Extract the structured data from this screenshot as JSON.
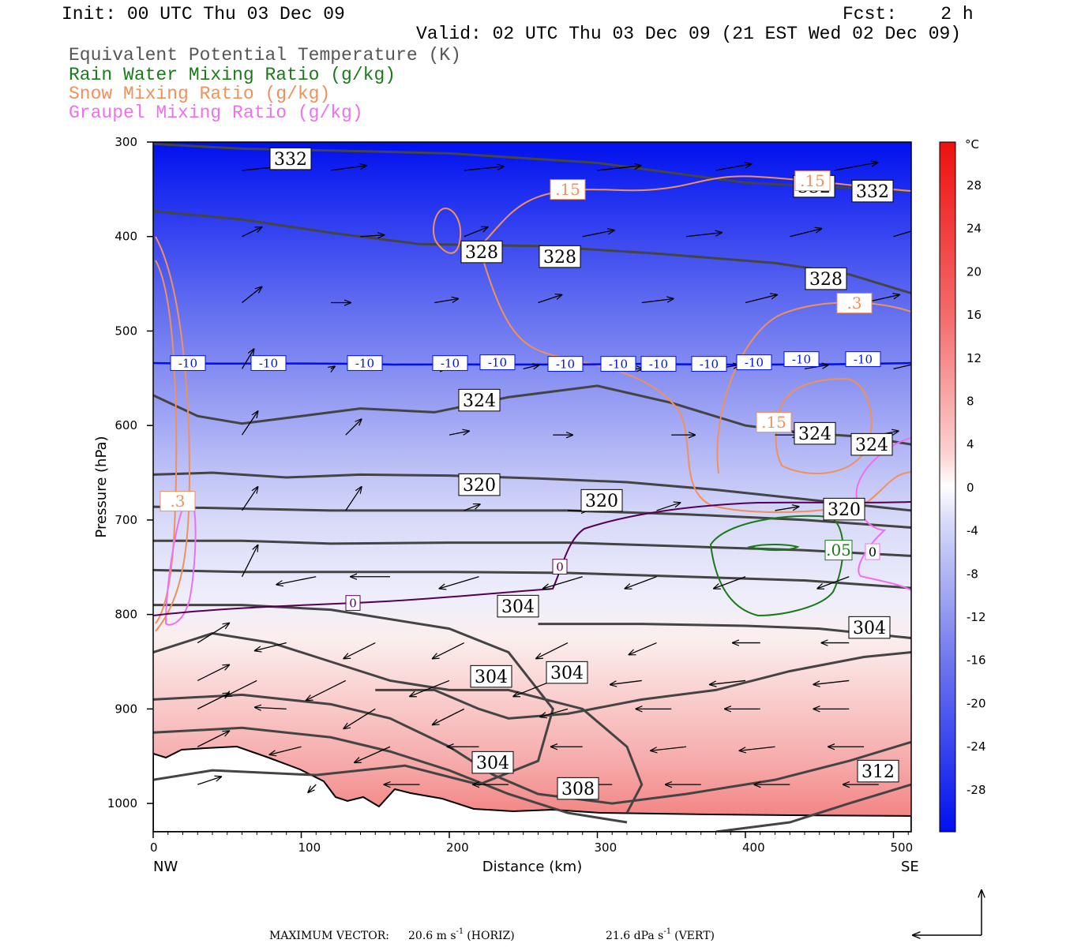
{
  "header": {
    "init": "Init: 00 UTC Thu 03 Dec 09",
    "fcst": "Fcst:    2 h",
    "valid": "Valid: 02 UTC Thu 03 Dec 09 (21 EST Wed 02 Dec 09)",
    "legend": [
      {
        "text": "Equivalent Potential Temperature (K)",
        "color": "#555555"
      },
      {
        "text": "Rain Water Mixing Ratio (g/kg)",
        "color": "#1a7a1a"
      },
      {
        "text": "Snow Mixing Ratio (g/kg)",
        "color": "#f0905a"
      },
      {
        "text": "Graupel Mixing Ratio (g/kg)",
        "color": "#ee70ee"
      }
    ]
  },
  "chart_data": {
    "type": "heatmap",
    "xlabel": "Distance (km)",
    "ylabel": "Pressure (hPa)",
    "xlim": [
      0,
      512
    ],
    "ylim": [
      1030,
      300
    ],
    "x_ticks": [
      "0",
      "100",
      "200",
      "300",
      "400",
      "500"
    ],
    "y_ticks": [
      "300",
      "400",
      "500",
      "600",
      "700",
      "800",
      "900",
      "1000"
    ],
    "x_end_labels": {
      "left": "NW",
      "right": "SE"
    },
    "colorbar": {
      "unit": "°C",
      "ticks": [
        "28",
        "24",
        "20",
        "16",
        "12",
        "8",
        "4",
        "0",
        "-4",
        "-8",
        "-12",
        "-16",
        "-20",
        "-24",
        "-28"
      ]
    },
    "theta_e_labels": [
      "332",
      "332",
      "332",
      "328",
      "328",
      "328",
      "324",
      "324",
      "324",
      "320",
      "320",
      "320",
      "304",
      "304",
      "304",
      "304",
      "304",
      "308",
      "312"
    ],
    "isotherm_labels": [
      "-10",
      "-10",
      "-10",
      "-10",
      "-10",
      "-10",
      "-10",
      "-10",
      "-10",
      "-10",
      "-10",
      "-10",
      "0",
      "0"
    ],
    "snow_labels": [
      ".15",
      ".15",
      ".3",
      ".3",
      ".15"
    ],
    "rain_labels": [
      ".05"
    ],
    "graupel_labels": [
      "0"
    ],
    "theta_e_levels": [
      {
        "theta": 332,
        "x": [
          0,
          60,
          120,
          200,
          300,
          400,
          512
        ],
        "p": [
          302,
          307,
          309,
          312,
          322,
          343,
          352
        ]
      },
      {
        "theta": 328,
        "x": [
          0,
          60,
          120,
          180,
          260,
          340,
          420,
          470,
          512
        ],
        "p": [
          373,
          382,
          396,
          408,
          410,
          418,
          428,
          440,
          460
        ]
      },
      {
        "theta": 324,
        "x": [
          0,
          30,
          60,
          100,
          140,
          190,
          240,
          300,
          350,
          400,
          440,
          480,
          512
        ],
        "p": [
          568,
          590,
          598,
          590,
          582,
          586,
          570,
          558,
          576,
          600,
          608,
          612,
          620
        ]
      },
      {
        "theta": 320,
        "x": [
          0,
          40,
          90,
          140,
          200,
          260,
          320,
          380,
          440,
          512
        ],
        "p": [
          652,
          650,
          655,
          652,
          653,
          656,
          660,
          668,
          678,
          690
        ]
      },
      {
        "theta": 316,
        "x": [
          0,
          60,
          120,
          200,
          280,
          360,
          440,
          512
        ],
        "p": [
          686,
          688,
          690,
          690,
          690,
          694,
          700,
          708
        ]
      },
      {
        "theta": 312,
        "x": [
          0,
          60,
          120,
          200,
          280,
          360,
          440,
          512
        ],
        "p": [
          722,
          722,
          725,
          724,
          724,
          728,
          732,
          738
        ]
      },
      {
        "theta": 308,
        "x": [
          0,
          60,
          120,
          200,
          280,
          360,
          440,
          512
        ],
        "p": [
          753,
          755,
          755,
          755,
          756,
          760,
          764,
          772
        ]
      }
    ],
    "isotherm_minus10": {
      "x": [
        0,
        100,
        200,
        300,
        400,
        512
      ],
      "p": [
        535,
        534,
        535,
        536,
        536,
        534
      ]
    },
    "isotherm_zero": {
      "x": [
        0,
        60,
        130,
        210,
        280,
        300,
        380,
        470,
        512
      ],
      "p": [
        800,
        790,
        785,
        770,
        755,
        680,
        678,
        682,
        680
      ]
    },
    "vectors": {
      "max_horiz": "20.6",
      "max_vert": "21.6",
      "arrow_field": [
        [
          60,
          330,
          50,
          -5
        ],
        [
          120,
          330,
          45,
          -6
        ],
        [
          210,
          330,
          50,
          -5
        ],
        [
          300,
          330,
          55,
          -6
        ],
        [
          380,
          330,
          45,
          -8
        ],
        [
          460,
          330,
          55,
          -10
        ],
        [
          60,
          400,
          25,
          -12
        ],
        [
          140,
          400,
          30,
          -2
        ],
        [
          210,
          400,
          30,
          -12
        ],
        [
          290,
          400,
          40,
          -8
        ],
        [
          360,
          400,
          45,
          -5
        ],
        [
          430,
          400,
          40,
          -10
        ],
        [
          500,
          400,
          40,
          -12
        ],
        [
          60,
          470,
          25,
          -20
        ],
        [
          120,
          470,
          25,
          0
        ],
        [
          190,
          470,
          30,
          -5
        ],
        [
          260,
          470,
          30,
          -10
        ],
        [
          330,
          470,
          40,
          -5
        ],
        [
          400,
          470,
          40,
          -10
        ],
        [
          480,
          470,
          45,
          -10
        ],
        [
          60,
          540,
          15,
          -25
        ],
        [
          120,
          540,
          5,
          -3
        ],
        [
          190,
          540,
          15,
          0
        ],
        [
          250,
          540,
          20,
          -5
        ],
        [
          320,
          540,
          20,
          0
        ],
        [
          380,
          540,
          30,
          -5
        ],
        [
          440,
          540,
          30,
          -5
        ],
        [
          500,
          540,
          35,
          -8
        ],
        [
          60,
          610,
          20,
          -30
        ],
        [
          130,
          610,
          20,
          -20
        ],
        [
          200,
          610,
          25,
          -5
        ],
        [
          270,
          610,
          25,
          0
        ],
        [
          350,
          610,
          30,
          0
        ],
        [
          420,
          610,
          30,
          0
        ],
        [
          490,
          610,
          25,
          -5
        ],
        [
          60,
          690,
          20,
          -30
        ],
        [
          130,
          690,
          20,
          -30
        ],
        [
          210,
          690,
          20,
          -8
        ],
        [
          280,
          690,
          25,
          0
        ],
        [
          340,
          690,
          30,
          -10
        ],
        [
          420,
          690,
          30,
          -5
        ],
        [
          60,
          760,
          20,
          -40
        ],
        [
          110,
          760,
          -50,
          10
        ],
        [
          160,
          760,
          -50,
          0
        ],
        [
          220,
          760,
          -50,
          15
        ],
        [
          290,
          760,
          -50,
          15
        ],
        [
          340,
          760,
          -40,
          15
        ],
        [
          400,
          760,
          -40,
          15
        ],
        [
          470,
          760,
          -40,
          15
        ],
        [
          30,
          830,
          40,
          -25
        ],
        [
          90,
          830,
          -40,
          10
        ],
        [
          150,
          830,
          -40,
          20
        ],
        [
          210,
          830,
          -40,
          20
        ],
        [
          280,
          830,
          -40,
          20
        ],
        [
          340,
          830,
          -35,
          15
        ],
        [
          410,
          830,
          -35,
          0
        ],
        [
          470,
          830,
          -35,
          0
        ],
        [
          30,
          870,
          40,
          -20
        ],
        [
          70,
          870,
          -40,
          20
        ],
        [
          130,
          870,
          -50,
          25
        ],
        [
          200,
          870,
          -50,
          20
        ],
        [
          270,
          870,
          -50,
          20
        ],
        [
          330,
          870,
          -40,
          5
        ],
        [
          400,
          870,
          -45,
          5
        ],
        [
          470,
          870,
          -45,
          5
        ],
        [
          30,
          900,
          40,
          -20
        ],
        [
          90,
          900,
          -40,
          -2
        ],
        [
          150,
          900,
          -40,
          25
        ],
        [
          210,
          900,
          -40,
          20
        ],
        [
          280,
          900,
          -35,
          10
        ],
        [
          350,
          900,
          -45,
          0
        ],
        [
          410,
          900,
          -45,
          0
        ],
        [
          470,
          900,
          -45,
          0
        ],
        [
          30,
          940,
          40,
          -20
        ],
        [
          100,
          940,
          -40,
          10
        ],
        [
          160,
          940,
          -45,
          20
        ],
        [
          220,
          940,
          -40,
          0
        ],
        [
          290,
          940,
          -40,
          0
        ],
        [
          360,
          940,
          -45,
          5
        ],
        [
          420,
          940,
          -45,
          5
        ],
        [
          480,
          940,
          -45,
          0
        ],
        [
          30,
          980,
          30,
          -10
        ],
        [
          110,
          980,
          -10,
          10
        ],
        [
          180,
          980,
          -45,
          0
        ],
        [
          240,
          980,
          -45,
          0
        ],
        [
          310,
          980,
          -45,
          0
        ],
        [
          370,
          980,
          -45,
          0
        ],
        [
          430,
          980,
          -45,
          0
        ],
        [
          490,
          980,
          -45,
          0
        ]
      ]
    }
  },
  "footer": {
    "max_vector_label": "MAXIMUM VECTOR:",
    "horiz_value": "20.6 m s",
    "horiz_unit": "(HORIZ)",
    "vert_value": "21.6 dPa s",
    "vert_unit": "(VERT)",
    "exponent": "-1"
  }
}
